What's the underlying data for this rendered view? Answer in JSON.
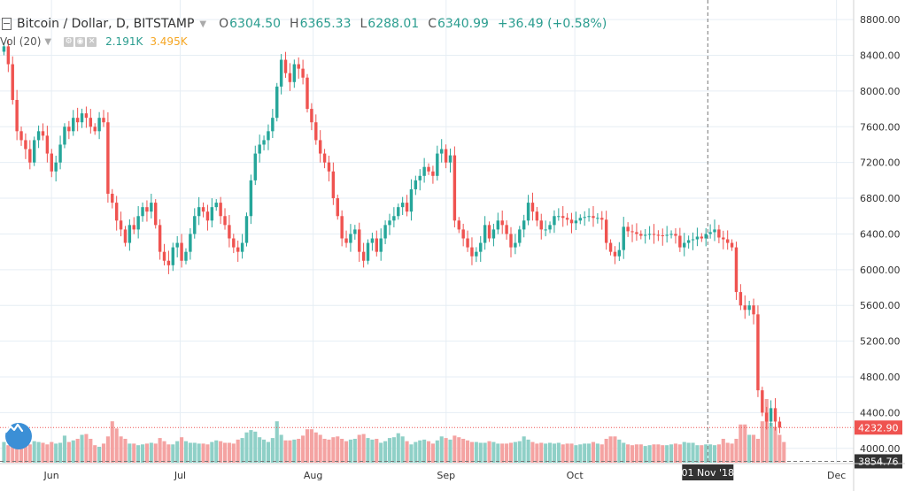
{
  "header": {
    "symbol": "Bitcoin / Dollar, D, BITSTAMP",
    "open_label": "O",
    "open": "6304.50",
    "high_label": "H",
    "high": "6365.33",
    "low_label": "L",
    "low": "6288.01",
    "close_label": "C",
    "close": "6340.99",
    "change": "+36.49 (+0.58%)"
  },
  "volume_legend": {
    "label": "Vol (20)",
    "vol": "2.191K",
    "vol_ma": "3.495K"
  },
  "price_axis": {
    "ticks": [
      "8800.00",
      "8400.00",
      "8000.00",
      "7600.00",
      "7200.00",
      "6800.00",
      "6400.00",
      "6000.00",
      "5600.00",
      "5200.00",
      "4800.00",
      "4400.00",
      "4000.00"
    ]
  },
  "time_axis": {
    "ticks": [
      "Jun",
      "Jul",
      "Aug",
      "Sep",
      "Oct",
      "Dec"
    ]
  },
  "crosshair": {
    "date_label": "01 Nov '18",
    "price_label": "3854.76"
  },
  "last_price_label": "4232.90",
  "colors": {
    "up": "#26a69a",
    "down": "#ef5350",
    "up_vol": "#8fd0c7",
    "down_vol": "#f4a3a2",
    "grid": "#e6eef4",
    "axis_text": "#333333",
    "accent": "#2b9d8f",
    "last_price": "#ef5350"
  },
  "chart_data": {
    "type": "candlestick",
    "y_range": [
      3800,
      8900
    ],
    "x_start": "2018-05-20",
    "x_end": "2018-12-05",
    "price_ticks": [
      8800,
      8400,
      8000,
      7600,
      7200,
      6800,
      6400,
      6000,
      5600,
      5200,
      4800,
      4400,
      4000
    ],
    "month_ticks": [
      [
        "Jun",
        "2018-06-01"
      ],
      [
        "Jul",
        "2018-07-01"
      ],
      [
        "Aug",
        "2018-08-01"
      ],
      [
        "Sep",
        "2018-09-01"
      ],
      [
        "Oct",
        "2018-10-01"
      ],
      [
        "Dec",
        "2018-12-01"
      ]
    ],
    "crosshair_date": "2018-11-01",
    "crosshair_price": 3854.76,
    "last_price": 4232.9,
    "closes": [
      8500,
      8300,
      7900,
      7550,
      7450,
      7350,
      7200,
      7450,
      7550,
      7500,
      7300,
      7100,
      7200,
      7400,
      7600,
      7550,
      7700,
      7650,
      7750,
      7700,
      7600,
      7550,
      7700,
      7650,
      6850,
      6750,
      6550,
      6450,
      6300,
      6500,
      6450,
      6600,
      6700,
      6650,
      6750,
      6500,
      6200,
      6100,
      6050,
      6250,
      6300,
      6100,
      6200,
      6400,
      6600,
      6700,
      6650,
      6550,
      6700,
      6750,
      6600,
      6500,
      6350,
      6250,
      6200,
      6300,
      6600,
      7000,
      7300,
      7400,
      7450,
      7550,
      7700,
      8050,
      8350,
      8200,
      8100,
      8300,
      8250,
      8150,
      7800,
      7650,
      7450,
      7300,
      7200,
      7100,
      6800,
      6600,
      6350,
      6300,
      6400,
      6450,
      6200,
      6100,
      6300,
      6350,
      6200,
      6350,
      6500,
      6550,
      6600,
      6700,
      6750,
      6650,
      6900,
      7000,
      7050,
      7150,
      7100,
      7050,
      7300,
      7350,
      7200,
      7280,
      6550,
      6450,
      6350,
      6250,
      6150,
      6200,
      6300,
      6500,
      6350,
      6450,
      6550,
      6500,
      6400,
      6250,
      6300,
      6450,
      6550,
      6750,
      6650,
      6550,
      6450,
      6450,
      6500,
      6600,
      6600,
      6580,
      6560,
      6520,
      6550,
      6580,
      6590,
      6600,
      6580,
      6580,
      6560,
      6300,
      6200,
      6150,
      6220,
      6480,
      6430,
      6420,
      6400,
      6380,
      6390,
      6400,
      6390,
      6385,
      6380,
      6390,
      6400,
      6380,
      6250,
      6300,
      6330,
      6340,
      6370,
      6350,
      6400,
      6420,
      6450,
      6360,
      6340,
      6300,
      6250,
      5750,
      5600,
      5550,
      5600,
      5500,
      4650,
      4400,
      4300,
      4450,
      4300,
      4232.9
    ],
    "volumes": [
      260,
      220,
      240,
      210,
      400,
      250,
      230,
      270,
      260,
      250,
      230,
      260,
      240,
      250,
      340,
      260,
      280,
      300,
      350,
      360,
      300,
      220,
      200,
      240,
      330,
      520,
      430,
      330,
      300,
      240,
      240,
      220,
      230,
      240,
      250,
      240,
      310,
      270,
      230,
      230,
      270,
      320,
      270,
      250,
      250,
      240,
      240,
      230,
      260,
      280,
      270,
      250,
      250,
      240,
      290,
      310,
      380,
      410,
      390,
      320,
      290,
      260,
      310,
      520,
      350,
      280,
      280,
      290,
      300,
      340,
      420,
      420,
      380,
      350,
      300,
      290,
      320,
      330,
      300,
      270,
      290,
      300,
      350,
      360,
      310,
      290,
      300,
      250,
      270,
      310,
      320,
      370,
      330,
      270,
      230,
      260,
      280,
      290,
      270,
      240,
      280,
      330,
      310,
      290,
      340,
      320,
      300,
      280,
      260,
      260,
      250,
      250,
      270,
      260,
      240,
      240,
      240,
      250,
      260,
      270,
      330,
      290,
      260,
      240,
      250,
      240,
      250,
      240,
      250,
      230,
      240,
      240,
      220,
      230,
      240,
      240,
      260,
      240,
      230,
      300,
      330,
      330,
      290,
      250,
      230,
      220,
      230,
      230,
      210,
      220,
      230,
      230,
      220,
      220,
      230,
      240,
      230,
      260,
      250,
      250,
      220,
      220,
      230,
      230,
      220,
      230,
      300,
      250,
      240,
      300,
      480,
      480,
      350,
      350,
      300,
      520,
      800,
      500,
      450,
      350,
      260
    ]
  }
}
